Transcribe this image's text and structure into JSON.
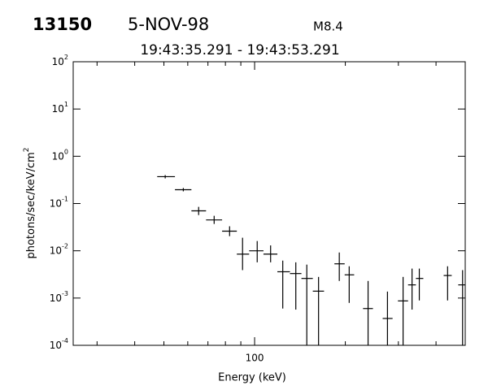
{
  "chart_data": {
    "type": "errorbar",
    "header": {
      "id": "13150",
      "date": "5-NOV-98",
      "class": "M8.4",
      "time_range": "19:43:35.291 - 19:43:53.291"
    },
    "x_label": "Energy (keV)",
    "y_label": {
      "text": "photons/sec/keV/cm",
      "exponent": "2"
    },
    "log_x": true,
    "log_y": true,
    "color": "#000000",
    "xlim": [
      25,
      500
    ],
    "xticks": [
      100
    ],
    "xminorticks": [
      30,
      40,
      50,
      60,
      70,
      80,
      90,
      200,
      300,
      400
    ],
    "ylim": [
      0.0001,
      100
    ],
    "yticks": [
      {
        "value": 100,
        "label": "10",
        "exponent": "2"
      },
      {
        "value": 10,
        "label": "10",
        "exponent": "1"
      },
      {
        "value": 1,
        "label": "10",
        "exponent": "0"
      },
      {
        "value": 0.1,
        "label": "10",
        "exponent": "-1"
      },
      {
        "value": 0.01,
        "label": "10",
        "exponent": "-2"
      },
      {
        "value": 0.001,
        "label": "10",
        "exponent": "-3"
      },
      {
        "value": 0.0001,
        "label": "10",
        "exponent": "-4"
      }
    ],
    "x": [
      50.5,
      58.0,
      65.2,
      73.4,
      82.6,
      91.2,
      102,
      113,
      124,
      137,
      149,
      163,
      191,
      206,
      238,
      276,
      311,
      333,
      352,
      437,
      490
    ],
    "xlow": [
      47.5,
      54.4,
      61.7,
      69.0,
      78,
      87.3,
      95.9,
      107,
      119,
      131,
      143,
      156,
      184,
      199,
      229,
      266,
      299,
      323,
      343,
      424,
      474
    ],
    "xhigh": [
      54.4,
      61.7,
      69.0,
      78,
      87.3,
      95.9,
      107,
      119,
      131,
      143,
      156,
      170,
      199,
      214,
      247,
      287,
      323,
      343,
      363,
      451,
      500
    ],
    "values": [
      0.37,
      0.196,
      0.07,
      0.045,
      0.026,
      0.0085,
      0.01,
      0.0085,
      0.0036,
      0.0033,
      0.0026,
      0.0014,
      0.0053,
      0.0031,
      0.0006,
      0.00037,
      0.00087,
      0.0019,
      0.0026,
      0.003,
      0.0019
    ],
    "ylow": [
      0.34,
      0.181,
      0.057,
      0.037,
      0.0204,
      0.0039,
      0.0057,
      0.0057,
      0.0006,
      0.00057,
      5e-05,
      5e-05,
      0.0023,
      0.00079,
      5e-05,
      5e-05,
      5e-05,
      0.00057,
      0.00089,
      0.00089,
      5e-05
    ],
    "yhigh": [
      0.4,
      0.213,
      0.085,
      0.055,
      0.033,
      0.0189,
      0.0161,
      0.013,
      0.0062,
      0.0057,
      0.0051,
      0.0028,
      0.0092,
      0.0047,
      0.0023,
      0.00137,
      0.0028,
      0.0042,
      0.0042,
      0.0047,
      0.0039
    ]
  }
}
